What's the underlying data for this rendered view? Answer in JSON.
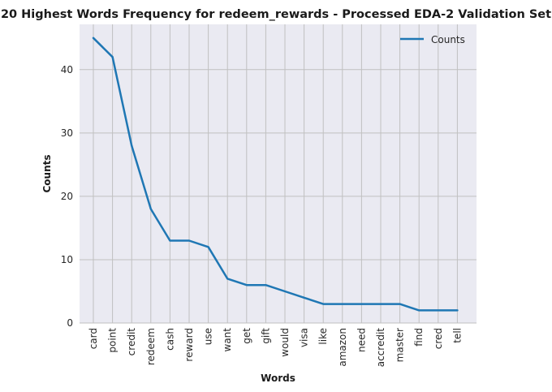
{
  "chart_data": {
    "type": "line",
    "title": "20 Highest Words Frequency for redeem_rewards - Processed EDA-2 Validation Set",
    "xlabel": "Words",
    "ylabel": "Counts",
    "categories": [
      "card",
      "point",
      "credit",
      "redeem",
      "cash",
      "reward",
      "use",
      "want",
      "get",
      "gift",
      "would",
      "visa",
      "like",
      "amazon",
      "need",
      "accredit",
      "master",
      "find",
      "cred",
      "tell"
    ],
    "series": [
      {
        "name": "Counts",
        "values": [
          45,
          42,
          28,
          18,
          13,
          13,
          12,
          7,
          6,
          6,
          5,
          4,
          3,
          3,
          3,
          3,
          3,
          2,
          2,
          2
        ],
        "color": "#1f77b4"
      }
    ],
    "yticks": [
      0,
      10,
      20,
      30,
      40
    ],
    "ylim": [
      0,
      47.15
    ],
    "grid": true,
    "legend_position": "top-right",
    "plot_background": "#eaeaf2",
    "grid_color": "#c0c0c0"
  }
}
